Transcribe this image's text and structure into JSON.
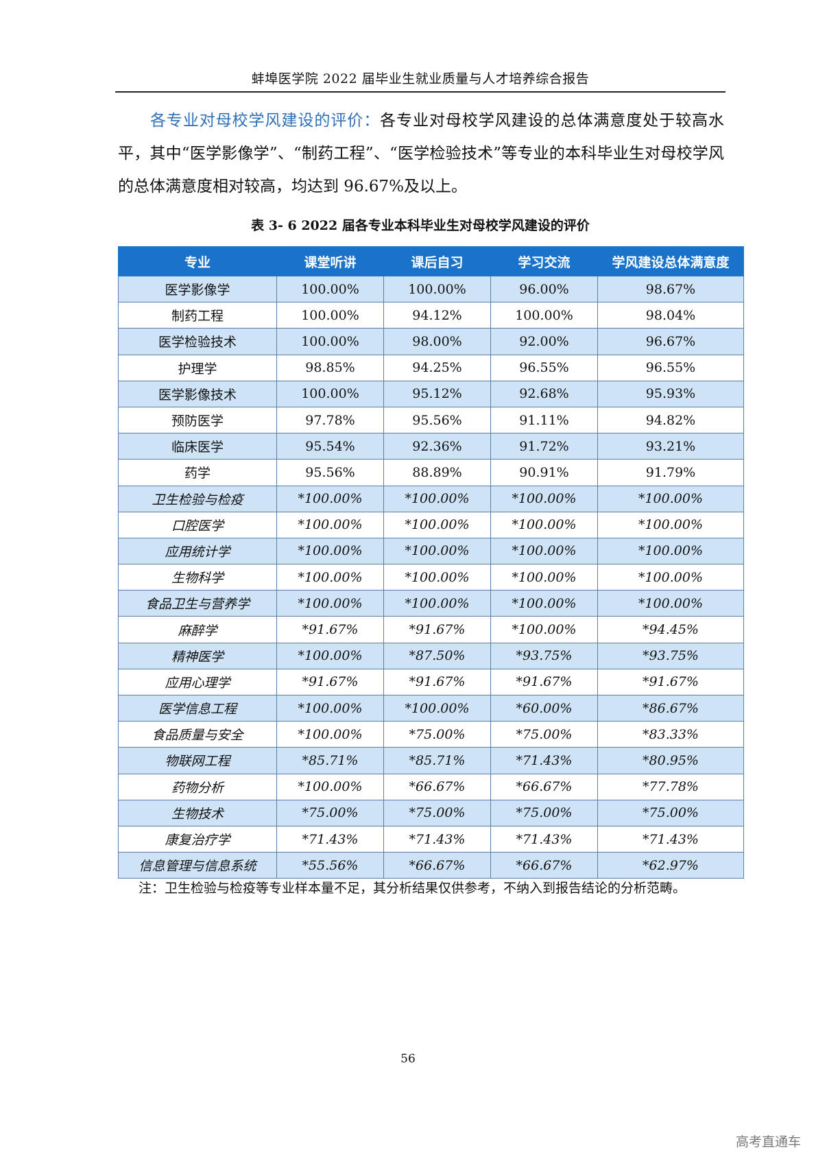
{
  "header": {
    "title": "蚌埠医学院 2022 届毕业生就业质量与人才培养综合报告"
  },
  "intro": {
    "lead": "各专业对母校学风建设的评价：",
    "text": "各专业对母校学风建设的总体满意度处于较高水平，其中“医学影像学”、“制药工程”、“医学检验技术”等专业的本科毕业生对母校学风的总体满意度相对较高，均达到 96.67%及以上。"
  },
  "caption": "表 3- 6  2022 届各专业本科毕业生对母校学风建设的评价",
  "table": {
    "headers": [
      "专业",
      "课堂听讲",
      "课后自习",
      "学习交流",
      "学风建设总体满意度"
    ],
    "rows": [
      [
        "医学影像学",
        "100.00%",
        "100.00%",
        "96.00%",
        "98.67%"
      ],
      [
        "制药工程",
        "100.00%",
        "94.12%",
        "100.00%",
        "98.04%"
      ],
      [
        "医学检验技术",
        "100.00%",
        "98.00%",
        "92.00%",
        "96.67%"
      ],
      [
        "护理学",
        "98.85%",
        "94.25%",
        "96.55%",
        "96.55%"
      ],
      [
        "医学影像技术",
        "100.00%",
        "95.12%",
        "92.68%",
        "95.93%"
      ],
      [
        "预防医学",
        "97.78%",
        "95.56%",
        "91.11%",
        "94.82%"
      ],
      [
        "临床医学",
        "95.54%",
        "92.36%",
        "91.72%",
        "93.21%"
      ],
      [
        "药学",
        "95.56%",
        "88.89%",
        "90.91%",
        "91.79%"
      ],
      [
        "卫生检验与检疫",
        "*100.00%",
        "*100.00%",
        "*100.00%",
        "*100.00%"
      ],
      [
        "口腔医学",
        "*100.00%",
        "*100.00%",
        "*100.00%",
        "*100.00%"
      ],
      [
        "应用统计学",
        "*100.00%",
        "*100.00%",
        "*100.00%",
        "*100.00%"
      ],
      [
        "生物科学",
        "*100.00%",
        "*100.00%",
        "*100.00%",
        "*100.00%"
      ],
      [
        "食品卫生与营养学",
        "*100.00%",
        "*100.00%",
        "*100.00%",
        "*100.00%"
      ],
      [
        "麻醉学",
        "*91.67%",
        "*91.67%",
        "*100.00%",
        "*94.45%"
      ],
      [
        "精神医学",
        "*100.00%",
        "*87.50%",
        "*93.75%",
        "*93.75%"
      ],
      [
        "应用心理学",
        "*91.67%",
        "*91.67%",
        "*91.67%",
        "*91.67%"
      ],
      [
        "医学信息工程",
        "*100.00%",
        "*100.00%",
        "*60.00%",
        "*86.67%"
      ],
      [
        "食品质量与安全",
        "*100.00%",
        "*75.00%",
        "*75.00%",
        "*83.33%"
      ],
      [
        "物联网工程",
        "*85.71%",
        "*85.71%",
        "*71.43%",
        "*80.95%"
      ],
      [
        "药物分析",
        "*100.00%",
        "*66.67%",
        "*66.67%",
        "*77.78%"
      ],
      [
        "生物技术",
        "*75.00%",
        "*75.00%",
        "*75.00%",
        "*75.00%"
      ],
      [
        "康复治疗学",
        "*71.43%",
        "*71.43%",
        "*71.43%",
        "*71.43%"
      ],
      [
        "信息管理与信息系统",
        "*55.56%",
        "*66.67%",
        "*66.67%",
        "*62.97%"
      ]
    ]
  },
  "note": "注：卫生检验与检疫等专业样本量不足，其分析结果仅供参考，不纳入到报告结论的分析范畴。",
  "page_number": "56",
  "watermark": "高考直通车"
}
